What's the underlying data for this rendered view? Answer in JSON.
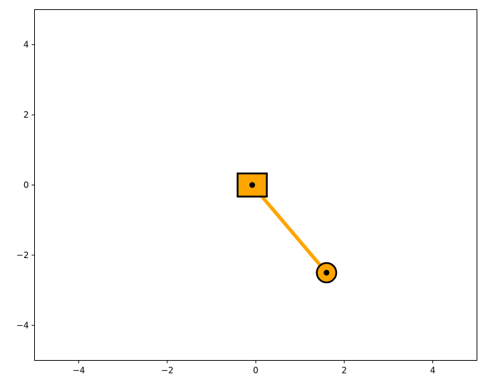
{
  "axes": {
    "xlim": [
      -5,
      5
    ],
    "ylim": [
      -5,
      5
    ],
    "xticks": [
      -4,
      -2,
      0,
      2,
      4
    ],
    "yticks": [
      -4,
      -2,
      0,
      2,
      4
    ],
    "xtick_labels": [
      "−4",
      "−2",
      "0",
      "2",
      "4"
    ],
    "ytick_labels": [
      "−4",
      "−2",
      "0",
      "2",
      "4"
    ],
    "grid": false
  },
  "pendulum": {
    "pivot": {
      "x": -0.08,
      "y": 0.0,
      "half_size": 0.33
    },
    "bob": {
      "x": 1.6,
      "y": -2.5,
      "radius": 0.22
    },
    "colors": {
      "fill": "#ffa500",
      "rod": "#ffa500",
      "edge": "#000000",
      "marker": "#000000"
    }
  }
}
